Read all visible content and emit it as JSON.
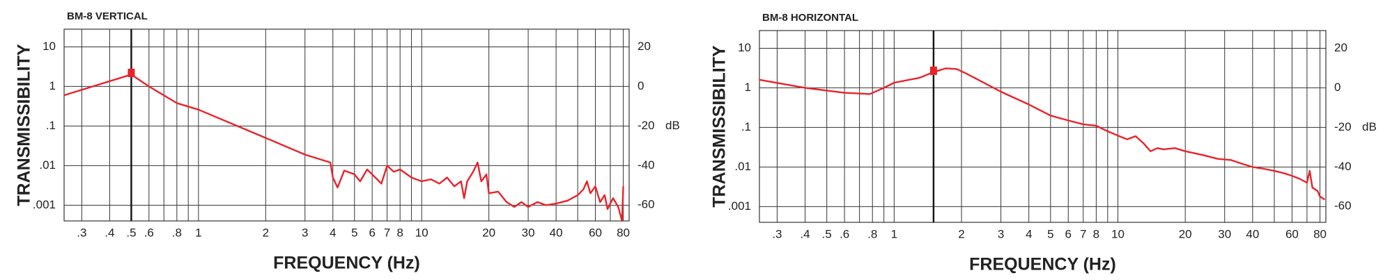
{
  "chart_data": [
    {
      "type": "line",
      "title": "BM-8 VERTICAL",
      "ylabel": "TRANSMISSIBILITY",
      "xlabel": "FREQUENCY (Hz)",
      "y2label": "dB",
      "xscale": "log",
      "yscale": "log",
      "grid": true,
      "color": "#e8232a",
      "xlim": [
        0.25,
        85
      ],
      "ylim": [
        0.0004,
        28
      ],
      "y2lim": [
        -68,
        29
      ],
      "xticks": [
        {
          "value": 0.3,
          "label": ".3"
        },
        {
          "value": 0.4,
          "label": ".4"
        },
        {
          "value": 0.5,
          "label": ".5"
        },
        {
          "value": 0.6,
          "label": ".6"
        },
        {
          "value": 0.8,
          "label": ".8"
        },
        1,
        2,
        3,
        4,
        5,
        6,
        7,
        8,
        10,
        20,
        30,
        40,
        60,
        80
      ],
      "xminor": [
        0.7,
        0.9,
        9,
        50,
        70
      ],
      "yticks": [
        10,
        1,
        {
          "value": 0.1,
          "label": ".1"
        },
        {
          "value": 0.01,
          "label": ".01"
        },
        {
          "value": 0.001,
          "label": ".001"
        }
      ],
      "y2ticks": [
        20,
        0,
        -20,
        -40,
        -60
      ],
      "marker": {
        "x": 0.5,
        "y": 2.2
      },
      "x": [
        0.25,
        0.5,
        0.6,
        0.8,
        1,
        2,
        3,
        3.9,
        4.0,
        4.2,
        4.5,
        5,
        5.3,
        5.7,
        6.2,
        6.6,
        7,
        7.5,
        8,
        9,
        10,
        11,
        12,
        13,
        14,
        15,
        15.5,
        16,
        17,
        17.8,
        18.5,
        19.5,
        20,
        22,
        24,
        26,
        28,
        30,
        33,
        36,
        40,
        45,
        50,
        53,
        55,
        57,
        60,
        63,
        66,
        68,
        72,
        76,
        79,
        80
      ],
      "values": [
        0.6,
        2.0,
        1.0,
        0.38,
        0.26,
        0.05,
        0.019,
        0.012,
        0.005,
        0.0028,
        0.0075,
        0.006,
        0.004,
        0.008,
        0.005,
        0.0035,
        0.01,
        0.007,
        0.008,
        0.005,
        0.004,
        0.0045,
        0.0035,
        0.005,
        0.003,
        0.004,
        0.0015,
        0.004,
        0.007,
        0.012,
        0.004,
        0.006,
        0.002,
        0.0022,
        0.0012,
        0.0009,
        0.0012,
        0.0009,
        0.0012,
        0.001,
        0.0011,
        0.0013,
        0.0018,
        0.0025,
        0.004,
        0.002,
        0.003,
        0.0012,
        0.0018,
        0.0008,
        0.0015,
        0.0009,
        0.0004,
        0.003
      ]
    },
    {
      "type": "line",
      "title": "BM-8 HORIZONTAL",
      "ylabel": "TRANSMISSIBILITY",
      "xlabel": "FREQUENCY (Hz)",
      "y2label": "dB",
      "xscale": "log",
      "yscale": "log",
      "grid": true,
      "color": "#e8232a",
      "xlim": [
        0.25,
        85
      ],
      "ylim": [
        0.0004,
        28
      ],
      "y2lim": [
        -68,
        29
      ],
      "xticks": [
        {
          "value": 0.3,
          "label": ".3"
        },
        {
          "value": 0.4,
          "label": ".4"
        },
        {
          "value": 0.5,
          "label": ".5"
        },
        {
          "value": 0.6,
          "label": ".6"
        },
        {
          "value": 0.8,
          "label": ".8"
        },
        1,
        2,
        3,
        4,
        5,
        6,
        7,
        8,
        10,
        20,
        30,
        40,
        60,
        80
      ],
      "xminor": [
        0.7,
        0.9,
        9,
        50,
        70
      ],
      "yticks": [
        10,
        1,
        {
          "value": 0.1,
          "label": ".1"
        },
        {
          "value": 0.01,
          "label": ".01"
        },
        {
          "value": 0.001,
          "label": ".001"
        }
      ],
      "y2ticks": [
        20,
        0,
        -20,
        -40,
        -60
      ],
      "marker": {
        "x": 1.5,
        "y": 2.7
      },
      "x": [
        0.25,
        0.4,
        0.6,
        0.78,
        0.9,
        1,
        1.3,
        1.5,
        1.7,
        1.9,
        2.1,
        3,
        4,
        5,
        6,
        7,
        8,
        9,
        10,
        11,
        12,
        13,
        14,
        15,
        16,
        18,
        20,
        24,
        28,
        32,
        36,
        40,
        45,
        50,
        55,
        60,
        65,
        70,
        72,
        74,
        78,
        80,
        84
      ],
      "values": [
        1.6,
        1.0,
        0.75,
        0.7,
        1.0,
        1.35,
        1.8,
        2.5,
        3.1,
        3.0,
        2.3,
        0.8,
        0.38,
        0.2,
        0.15,
        0.12,
        0.11,
        0.08,
        0.062,
        0.05,
        0.06,
        0.04,
        0.025,
        0.03,
        0.028,
        0.03,
        0.025,
        0.02,
        0.016,
        0.015,
        0.012,
        0.01,
        0.009,
        0.008,
        0.007,
        0.006,
        0.005,
        0.004,
        0.008,
        0.003,
        0.0025,
        0.0018,
        0.0015
      ]
    }
  ]
}
